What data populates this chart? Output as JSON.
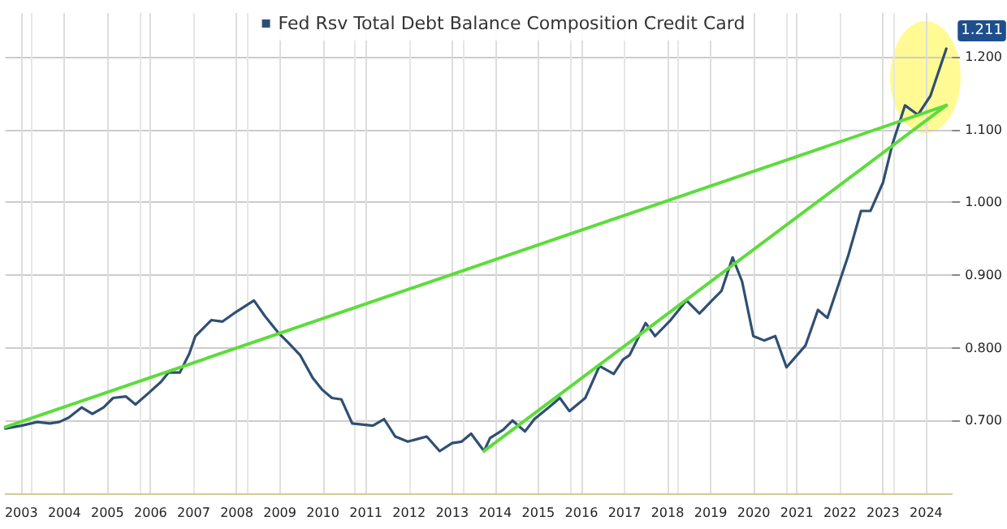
{
  "chart_data": {
    "type": "line",
    "legend": "top",
    "grid": true,
    "xlim": [
      2003.13,
      2025.1
    ],
    "xticks": [
      {
        "value": 2003.5,
        "label": "2003"
      },
      {
        "value": 2004.5,
        "label": "2004"
      },
      {
        "value": 2005.5,
        "label": "2005"
      },
      {
        "value": 2006.5,
        "label": "2006"
      },
      {
        "value": 2007.5,
        "label": "2007"
      },
      {
        "value": 2008.5,
        "label": "2008"
      },
      {
        "value": 2009.5,
        "label": "2009"
      },
      {
        "value": 2010.5,
        "label": "2010"
      },
      {
        "value": 2011.5,
        "label": "2011"
      },
      {
        "value": 2012.5,
        "label": "2012"
      },
      {
        "value": 2013.5,
        "label": "2013"
      },
      {
        "value": 2014.5,
        "label": "2014"
      },
      {
        "value": 2015.5,
        "label": "2015"
      },
      {
        "value": 2016.5,
        "label": "2016"
      },
      {
        "value": 2017.5,
        "label": "2017"
      },
      {
        "value": 2018.5,
        "label": "2018"
      },
      {
        "value": 2019.5,
        "label": "2019"
      },
      {
        "value": 2020.5,
        "label": "2020"
      },
      {
        "value": 2021.5,
        "label": "2021"
      },
      {
        "value": 2022.5,
        "label": "2022"
      },
      {
        "value": 2023.5,
        "label": "2023"
      },
      {
        "value": 2024.5,
        "label": "2024"
      }
    ],
    "ylim": [
      0.6,
      1.26
    ],
    "yticks": [
      {
        "value": 0.7,
        "label": "0.700"
      },
      {
        "value": 0.8,
        "label": "0.800"
      },
      {
        "value": 0.9,
        "label": "0.900"
      },
      {
        "value": 1.0,
        "label": "1.000"
      },
      {
        "value": 1.1,
        "label": "1.100"
      },
      {
        "value": 1.2,
        "label": "1.200"
      }
    ],
    "marker": "none",
    "line_style": "solid",
    "series": [
      {
        "name": "Fed Rsv Total Debt Balance Composition Credit Card",
        "color": "#2f4f72",
        "x": [
          2003.13,
          2003.5,
          2003.87,
          2004.16,
          2004.38,
          2004.6,
          2004.9,
          2005.15,
          2005.41,
          2005.63,
          2005.93,
          2006.15,
          2006.44,
          2006.74,
          2006.92,
          2007.18,
          2007.4,
          2007.54,
          2007.91,
          2008.17,
          2008.43,
          2008.9,
          2009.16,
          2009.46,
          2009.68,
          2009.97,
          2010.26,
          2010.49,
          2010.71,
          2010.93,
          2011.18,
          2011.66,
          2011.92,
          2012.18,
          2012.47,
          2012.91,
          2013.21,
          2013.5,
          2013.72,
          2013.94,
          2014.24,
          2014.38,
          2014.68,
          2014.9,
          2015.19,
          2015.41,
          2015.74,
          2016.0,
          2016.22,
          2016.59,
          2016.92,
          2017.25,
          2017.47,
          2017.62,
          2017.99,
          2018.21,
          2018.57,
          2018.94,
          2019.24,
          2019.53,
          2019.75,
          2020.01,
          2020.23,
          2020.49,
          2020.74,
          2021.0,
          2021.26,
          2021.7,
          2021.99,
          2022.21,
          2022.69,
          2022.99,
          2023.21,
          2023.5,
          2023.72,
          2024.01,
          2024.31,
          2024.6,
          2024.97
        ],
        "values": [
          0.689,
          0.693,
          0.698,
          0.696,
          0.698,
          0.704,
          0.718,
          0.709,
          0.718,
          0.731,
          0.733,
          0.722,
          0.737,
          0.753,
          0.766,
          0.766,
          0.792,
          0.816,
          0.838,
          0.836,
          0.847,
          0.865,
          0.843,
          0.821,
          0.808,
          0.79,
          0.759,
          0.742,
          0.731,
          0.729,
          0.696,
          0.693,
          0.702,
          0.678,
          0.671,
          0.678,
          0.658,
          0.669,
          0.671,
          0.682,
          0.658,
          0.676,
          0.687,
          0.7,
          0.685,
          0.702,
          0.718,
          0.731,
          0.713,
          0.731,
          0.775,
          0.764,
          0.784,
          0.79,
          0.834,
          0.816,
          0.838,
          0.865,
          0.847,
          0.865,
          0.878,
          0.924,
          0.891,
          0.816,
          0.81,
          0.816,
          0.773,
          0.803,
          0.852,
          0.841,
          0.926,
          0.988,
          0.988,
          1.027,
          1.08,
          1.133,
          1.12,
          1.146,
          1.211
        ],
        "value_labels": [
          null,
          null,
          null,
          null,
          null,
          null,
          null,
          null,
          null,
          null,
          null,
          null,
          null,
          null,
          null,
          null,
          null,
          null,
          null,
          null,
          null,
          null,
          null,
          null,
          null,
          null,
          null,
          null,
          null,
          null,
          null,
          null,
          null,
          null,
          null,
          null,
          null,
          null,
          null,
          null,
          null,
          null,
          null,
          null,
          null,
          null,
          null,
          null,
          null,
          null,
          null,
          null,
          null,
          null,
          null,
          null,
          null,
          null,
          null,
          null,
          null,
          null,
          null,
          null,
          null,
          null,
          null,
          null,
          null,
          null,
          null,
          null,
          null,
          null,
          null,
          null,
          null,
          null,
          "1.211"
        ]
      },
      {
        "color": "#5ddc3c",
        "x": [
          2003.13,
          2024.97
        ],
        "values": [
          0.691,
          1.133
        ]
      },
      {
        "color": "#5ddc3c",
        "x": [
          2014.24,
          2024.97
        ],
        "values": [
          0.658,
          1.133
        ]
      }
    ]
  }
}
